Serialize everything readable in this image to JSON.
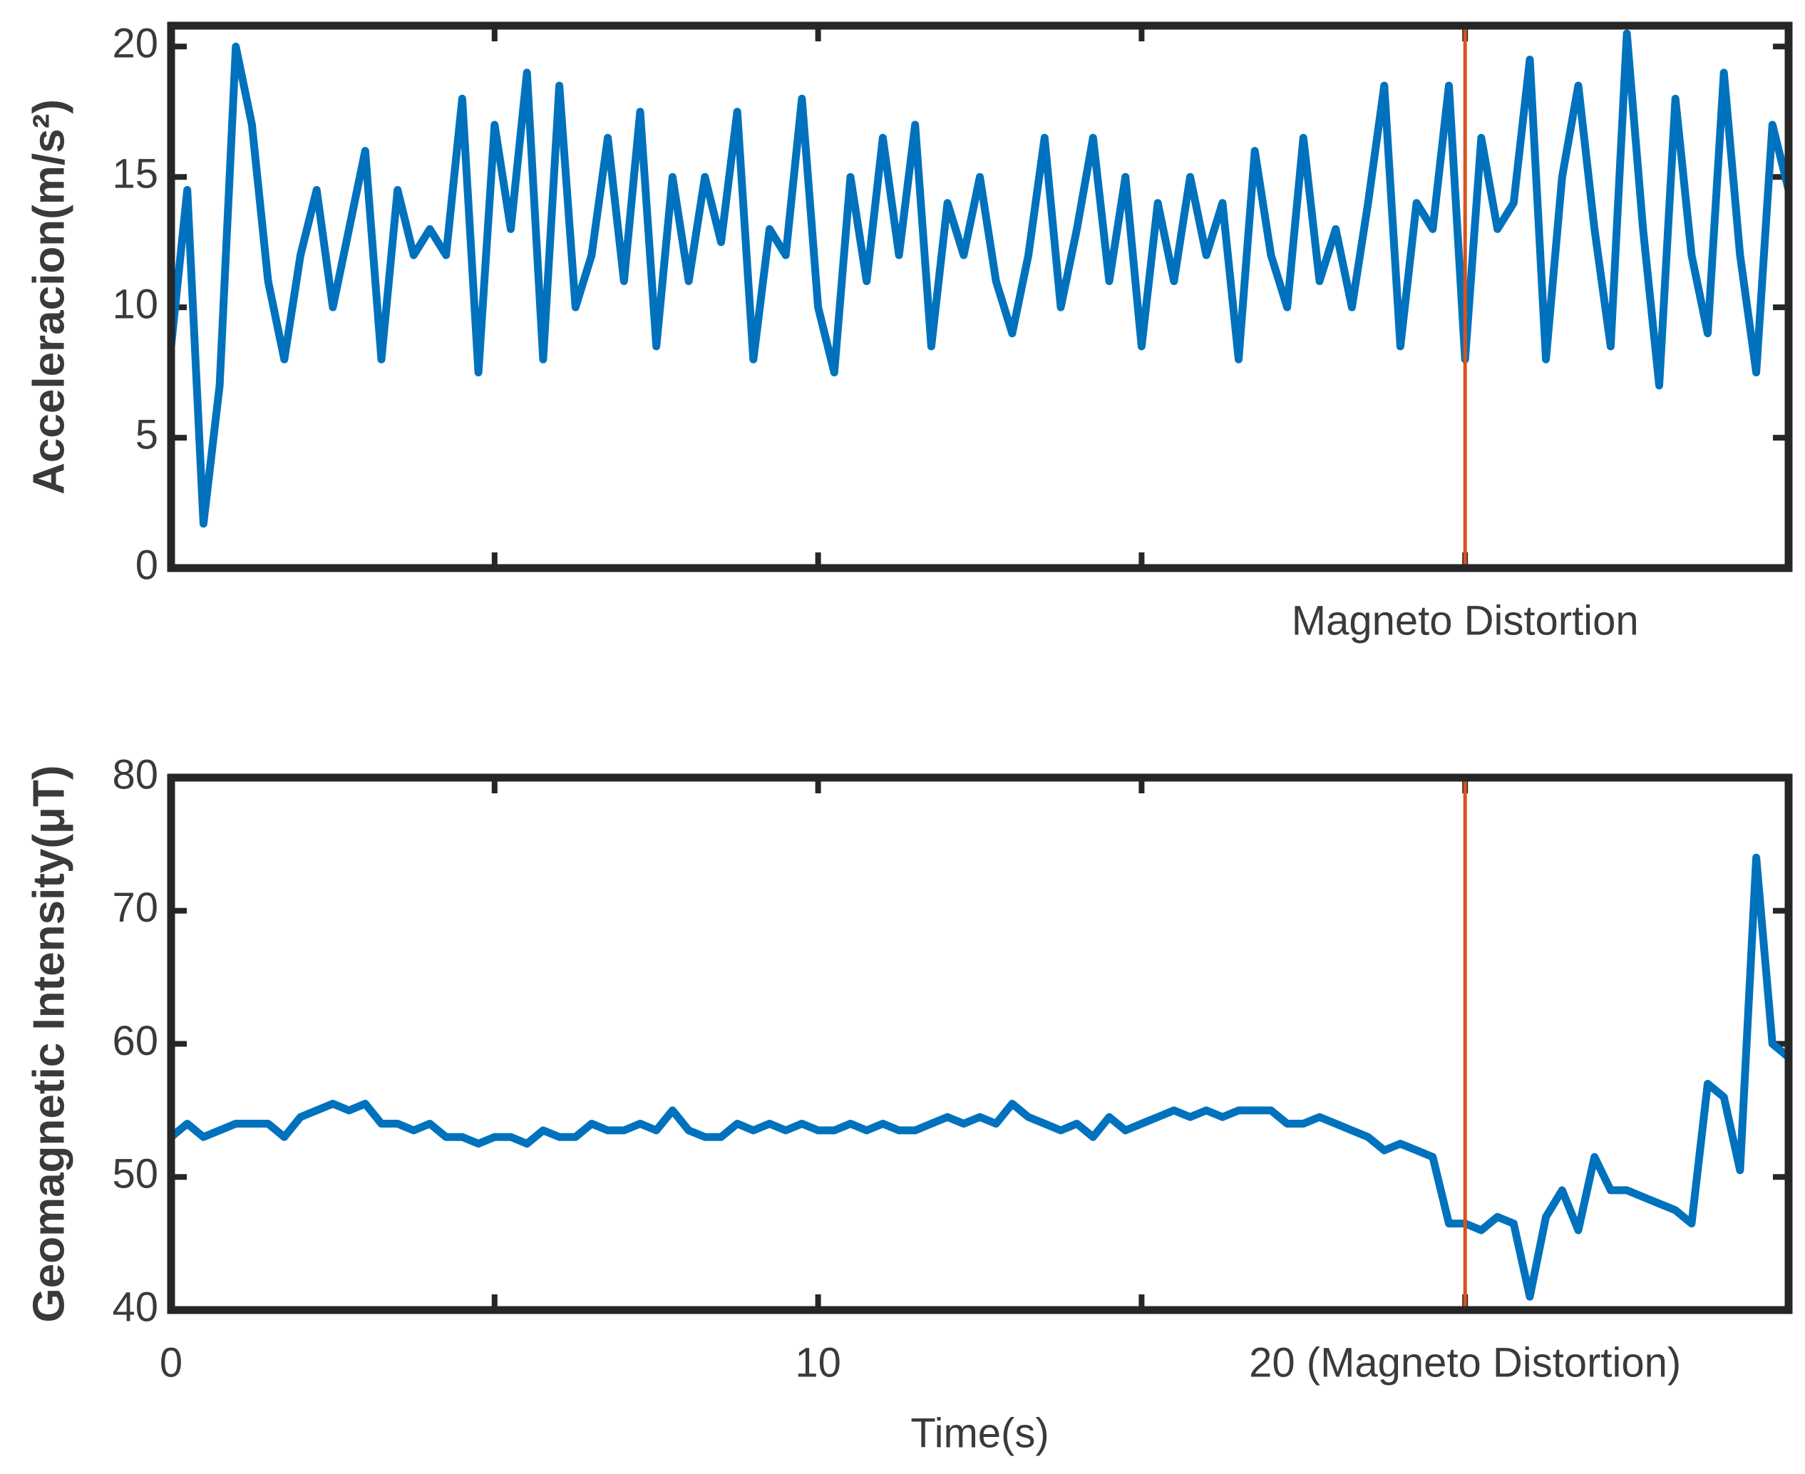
{
  "chart_data": [
    {
      "type": "line",
      "y_label": "Acceleracion(m/s²)",
      "annotation": "Magneto Distortion",
      "vline": {
        "x": 20,
        "color": "#d95319"
      },
      "x": [
        0,
        0.25,
        0.5,
        0.75,
        1,
        1.25,
        1.5,
        1.75,
        2,
        2.25,
        2.5,
        2.75,
        3,
        3.25,
        3.5,
        3.75,
        4,
        4.25,
        4.5,
        4.75,
        5,
        5.25,
        5.5,
        5.75,
        6,
        6.25,
        6.5,
        6.75,
        7,
        7.25,
        7.5,
        7.75,
        8,
        8.25,
        8.5,
        8.75,
        9,
        9.25,
        9.5,
        9.75,
        10,
        10.25,
        10.5,
        10.75,
        11,
        11.25,
        11.5,
        11.75,
        12,
        12.25,
        12.5,
        12.75,
        13,
        13.25,
        13.5,
        13.75,
        14,
        14.25,
        14.5,
        14.75,
        15,
        15.25,
        15.5,
        15.75,
        16,
        16.25,
        16.5,
        16.75,
        17,
        17.25,
        17.5,
        17.75,
        18,
        18.25,
        18.5,
        18.75,
        19,
        19.25,
        19.5,
        19.75,
        20,
        20.25,
        20.5,
        20.75,
        21,
        21.25,
        21.5,
        21.75,
        22,
        22.25,
        22.5,
        22.75,
        23,
        23.25,
        23.5,
        23.75,
        24,
        24.25,
        24.5,
        24.75,
        25
      ],
      "series": [
        {
          "color": "#0072bd",
          "values": [
            8.5,
            14.5,
            1.7,
            7,
            20,
            17,
            11,
            8,
            12,
            14.5,
            10,
            13,
            16,
            8,
            14.5,
            12,
            13,
            12,
            18,
            7.5,
            17,
            13,
            19,
            8,
            18.5,
            10,
            12,
            16.5,
            11,
            17.5,
            8.5,
            15,
            11,
            15,
            12.5,
            17.5,
            8,
            13,
            12,
            18,
            10,
            7.5,
            15,
            11,
            16.5,
            12,
            17,
            8.5,
            14,
            12,
            15,
            11,
            9,
            12,
            16.5,
            10,
            13,
            16.5,
            11,
            15,
            8.5,
            14,
            11,
            15,
            12,
            14,
            8,
            16,
            12,
            10,
            16.5,
            11,
            13,
            10,
            14,
            18.5,
            8.5,
            14,
            13,
            18.5,
            8,
            16.5,
            13,
            14,
            19.5,
            8,
            15,
            18.5,
            13,
            8.5,
            20.5,
            13,
            7,
            18,
            12,
            9,
            19,
            12,
            7.5,
            17,
            14.5
          ]
        }
      ],
      "xlim": [
        0,
        25
      ],
      "ylim": [
        0,
        20.8
      ],
      "xticks": [
        {
          "value": 0,
          "label": null
        },
        {
          "value": 5,
          "label": null
        },
        {
          "value": 10,
          "label": null
        },
        {
          "value": 15,
          "label": null
        },
        {
          "value": 20,
          "label": null
        },
        {
          "value": 25,
          "label": null
        }
      ],
      "yticks": [
        0,
        5,
        10,
        15,
        20
      ]
    },
    {
      "type": "line",
      "y_label": "Geomagnetic Intensity(μT)",
      "x_label": "Time(s)",
      "vline": {
        "x": 20,
        "color": "#d95319"
      },
      "x": [
        0,
        0.25,
        0.5,
        0.75,
        1,
        1.25,
        1.5,
        1.75,
        2,
        2.25,
        2.5,
        2.75,
        3,
        3.25,
        3.5,
        3.75,
        4,
        4.25,
        4.5,
        4.75,
        5,
        5.25,
        5.5,
        5.75,
        6,
        6.25,
        6.5,
        6.75,
        7,
        7.25,
        7.5,
        7.75,
        8,
        8.25,
        8.5,
        8.75,
        9,
        9.25,
        9.5,
        9.75,
        10,
        10.25,
        10.5,
        10.75,
        11,
        11.25,
        11.5,
        11.75,
        12,
        12.25,
        12.5,
        12.75,
        13,
        13.25,
        13.5,
        13.75,
        14,
        14.25,
        14.5,
        14.75,
        15,
        15.25,
        15.5,
        15.75,
        16,
        16.25,
        16.5,
        16.75,
        17,
        17.25,
        17.5,
        17.75,
        18,
        18.25,
        18.5,
        18.75,
        19,
        19.25,
        19.5,
        19.75,
        20,
        20.25,
        20.5,
        20.75,
        21,
        21.25,
        21.5,
        21.75,
        22,
        22.25,
        22.5,
        22.75,
        23,
        23.25,
        23.5,
        23.75,
        24,
        24.25,
        24.5,
        24.75,
        25
      ],
      "series": [
        {
          "color": "#0072bd",
          "values": [
            53,
            54,
            53,
            53.5,
            54,
            54,
            54,
            53,
            54.5,
            55,
            55.5,
            55,
            55.5,
            54,
            54,
            53.5,
            54,
            53,
            53,
            52.5,
            53,
            53,
            52.5,
            53.5,
            53,
            53,
            54,
            53.5,
            53.5,
            54,
            53.5,
            55,
            53.5,
            53,
            53,
            54,
            53.5,
            54,
            53.5,
            54,
            53.5,
            53.5,
            54,
            53.5,
            54,
            53.5,
            53.5,
            54,
            54.5,
            54,
            54.5,
            54,
            55.5,
            54.5,
            54,
            53.5,
            54,
            53,
            54.5,
            53.5,
            54,
            54.5,
            55,
            54.5,
            55,
            54.5,
            55,
            55,
            55,
            54,
            54,
            54.5,
            54,
            53.5,
            53,
            52,
            52.5,
            52,
            51.5,
            46.5,
            46.5,
            46,
            47,
            46.5,
            41,
            47,
            49,
            46,
            51.5,
            49,
            49,
            48.5,
            48,
            47.5,
            46.5,
            57,
            56,
            50.5,
            74,
            60,
            59
          ]
        }
      ],
      "xlim": [
        0,
        25
      ],
      "ylim": [
        40,
        80
      ],
      "xticks": [
        0,
        {
          "value": 5,
          "label": null
        },
        10,
        {
          "value": 15,
          "label": null
        },
        {
          "value": 20,
          "label": "20 (Magneto Distortion)"
        },
        {
          "value": 25,
          "label": null
        }
      ],
      "yticks": [
        40,
        50,
        60,
        70,
        80
      ]
    }
  ]
}
